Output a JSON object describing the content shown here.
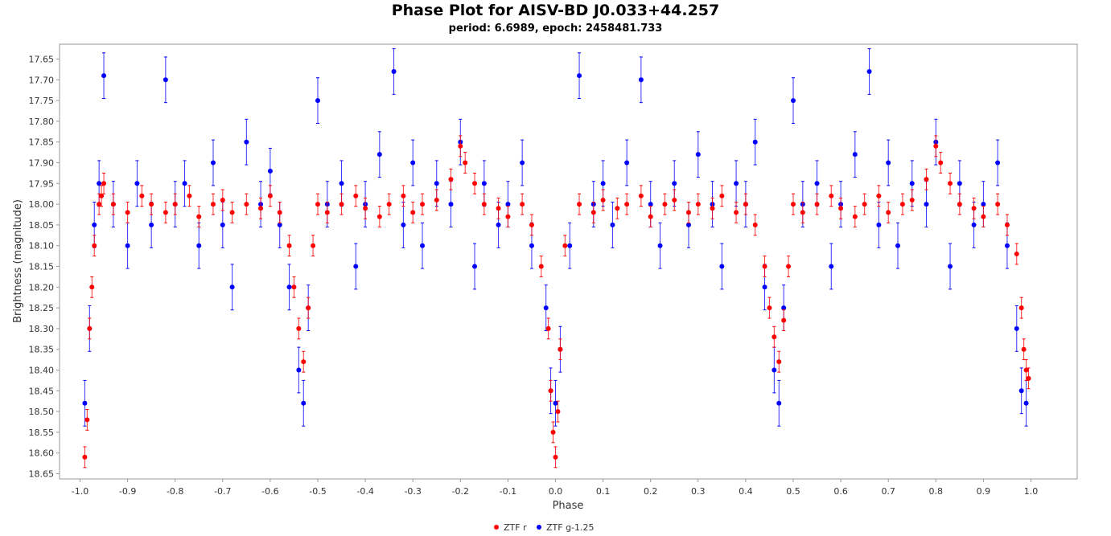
{
  "chart_data": {
    "type": "scatter",
    "title": "Phase Plot for AISV-BD J0.033+44.257",
    "subtitle": "period: 6.6989, epoch: 2458481.733",
    "xlabel": "Phase",
    "ylabel": "Brightness (magnitude)",
    "xlim": [
      -1.1,
      1.1
    ],
    "ylim": [
      18.665,
      17.6
    ],
    "y_inverted": true,
    "x_ticks": [
      "-1.0",
      "-0.9",
      "-0.8",
      "-0.7",
      "-0.6",
      "-0.5",
      "-0.4",
      "-0.3",
      "-0.2",
      "-0.1",
      "0.0",
      "0.1",
      "0.2",
      "0.3",
      "0.4",
      "0.5",
      "0.6",
      "0.7",
      "0.8",
      "0.9",
      "1.0"
    ],
    "y_ticks": [
      "17.65",
      "17.70",
      "17.75",
      "17.80",
      "17.85",
      "17.90",
      "17.95",
      "18.00",
      "18.05",
      "18.10",
      "18.15",
      "18.20",
      "18.25",
      "18.30",
      "18.35",
      "18.40",
      "18.45",
      "18.50",
      "18.55",
      "18.60",
      "18.65"
    ],
    "grid": false,
    "legend_position": "bottom-center",
    "colors": {
      "ZTF r": "#ff0000",
      "ZTF g-1.25": "#0000ff"
    },
    "series": [
      {
        "name": "ZTF r",
        "color": "#ff0000",
        "x": [
          -0.99,
          -0.985,
          -0.98,
          -0.975,
          -0.97,
          -0.96,
          -0.955,
          -0.95,
          -0.93,
          -0.9,
          -0.87,
          -0.85,
          -0.82,
          -0.8,
          -0.77,
          -0.75,
          -0.72,
          -0.7,
          -0.68,
          -0.65,
          -0.62,
          -0.6,
          -0.58,
          -0.56,
          -0.55,
          -0.54,
          -0.53,
          -0.52,
          -0.51,
          -0.5,
          -0.48,
          -0.45,
          -0.42,
          -0.4,
          -0.37,
          -0.35,
          -0.32,
          -0.3,
          -0.28,
          -0.25,
          -0.22,
          -0.2,
          -0.19,
          -0.17,
          -0.15,
          -0.12,
          -0.1,
          -0.07,
          -0.05,
          -0.03,
          -0.015,
          -0.01,
          -0.005,
          0.0,
          0.005,
          0.01,
          0.02,
          0.05,
          0.08,
          0.1,
          0.13,
          0.15,
          0.18,
          0.2,
          0.23,
          0.25,
          0.28,
          0.3,
          0.33,
          0.35,
          0.38,
          0.4,
          0.42,
          0.44,
          0.45,
          0.46,
          0.47,
          0.48,
          0.49,
          0.5,
          0.52,
          0.55,
          0.58,
          0.6,
          0.63,
          0.65,
          0.68,
          0.7,
          0.73,
          0.75,
          0.78,
          0.8,
          0.81,
          0.83,
          0.85,
          0.88,
          0.9,
          0.93,
          0.95,
          0.97,
          0.98,
          0.985,
          0.99,
          0.995
        ],
        "y": [
          18.61,
          18.52,
          18.3,
          18.2,
          18.1,
          18.0,
          17.98,
          17.95,
          18.0,
          18.02,
          17.98,
          18.0,
          18.02,
          18.0,
          17.98,
          18.03,
          18.0,
          17.99,
          18.02,
          18.0,
          18.01,
          17.98,
          18.02,
          18.1,
          18.2,
          18.3,
          18.38,
          18.25,
          18.1,
          18.0,
          18.02,
          18.0,
          17.98,
          18.01,
          18.03,
          18.0,
          17.98,
          18.02,
          18.0,
          17.99,
          17.94,
          17.86,
          17.9,
          17.95,
          18.0,
          18.01,
          18.03,
          18.0,
          18.05,
          18.15,
          18.3,
          18.45,
          18.55,
          18.61,
          18.5,
          18.35,
          18.1,
          18.0,
          18.02,
          17.99,
          18.01,
          18.0,
          17.98,
          18.03,
          18.0,
          17.99,
          18.02,
          18.0,
          18.01,
          17.98,
          18.02,
          18.0,
          18.05,
          18.15,
          18.25,
          18.32,
          18.38,
          18.28,
          18.15,
          18.0,
          18.02,
          18.0,
          17.98,
          18.01,
          18.03,
          18.0,
          17.98,
          18.02,
          18.0,
          17.99,
          17.94,
          17.86,
          17.9,
          17.95,
          18.0,
          18.01,
          18.03,
          18.0,
          18.05,
          18.12,
          18.25,
          18.35,
          18.4,
          18.42
        ]
      },
      {
        "name": "ZTF g-1.25",
        "color": "#0000ff",
        "x": [
          -0.99,
          -0.98,
          -0.97,
          -0.96,
          -0.95,
          -0.93,
          -0.9,
          -0.88,
          -0.85,
          -0.82,
          -0.8,
          -0.78,
          -0.75,
          -0.72,
          -0.7,
          -0.68,
          -0.65,
          -0.62,
          -0.6,
          -0.58,
          -0.56,
          -0.54,
          -0.53,
          -0.52,
          -0.5,
          -0.48,
          -0.45,
          -0.42,
          -0.4,
          -0.37,
          -0.34,
          -0.32,
          -0.3,
          -0.28,
          -0.25,
          -0.22,
          -0.2,
          -0.17,
          -0.15,
          -0.12,
          -0.1,
          -0.07,
          -0.05,
          -0.02,
          -0.01,
          0.0,
          0.01,
          0.03,
          0.05,
          0.08,
          0.1,
          0.12,
          0.15,
          0.18,
          0.2,
          0.22,
          0.25,
          0.28,
          0.3,
          0.33,
          0.35,
          0.38,
          0.4,
          0.42,
          0.44,
          0.46,
          0.47,
          0.48,
          0.5,
          0.52,
          0.55,
          0.58,
          0.6,
          0.63,
          0.66,
          0.68,
          0.7,
          0.72,
          0.75,
          0.78,
          0.8,
          0.83,
          0.85,
          0.88,
          0.9,
          0.93,
          0.95,
          0.97,
          0.98,
          0.99
        ],
        "y": [
          18.48,
          18.3,
          18.05,
          17.95,
          17.69,
          18.0,
          18.1,
          17.95,
          18.05,
          17.7,
          18.0,
          17.95,
          18.1,
          17.9,
          18.05,
          18.2,
          17.85,
          18.0,
          17.92,
          18.05,
          18.2,
          18.4,
          18.48,
          18.25,
          17.75,
          18.0,
          17.95,
          18.15,
          18.0,
          17.88,
          17.68,
          18.05,
          17.9,
          18.1,
          17.95,
          18.0,
          17.85,
          18.15,
          17.95,
          18.05,
          18.0,
          17.9,
          18.1,
          18.25,
          18.45,
          18.48,
          18.35,
          18.1,
          17.69,
          18.0,
          17.95,
          18.05,
          17.9,
          17.7,
          18.0,
          18.1,
          17.95,
          18.05,
          17.88,
          18.0,
          18.15,
          17.95,
          18.0,
          17.85,
          18.2,
          18.4,
          18.48,
          18.25,
          17.75,
          18.0,
          17.95,
          18.15,
          18.0,
          17.88,
          17.68,
          18.05,
          17.9,
          18.1,
          17.95,
          18.0,
          17.85,
          18.15,
          17.95,
          18.05,
          18.0,
          17.9,
          18.1,
          18.3,
          18.45,
          18.48
        ]
      }
    ]
  }
}
